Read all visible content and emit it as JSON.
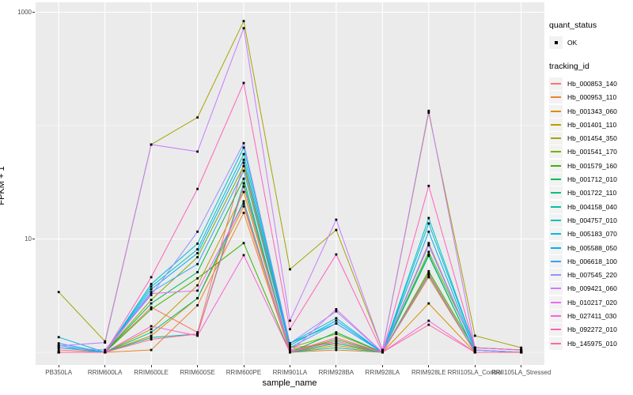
{
  "figure": {
    "y_axis_title": "FPKM + 1",
    "x_axis_title": "sample_name",
    "legend": {
      "quant_status_title": "quant_status",
      "quant_status_items": [
        "OK"
      ],
      "tracking_id_title": "tracking_id"
    }
  },
  "colors": {
    "panel_background": "#EBEBEB",
    "gridline": "#FFFFFF",
    "legend_key_background": "#F2F2F2",
    "point": "#000000",
    "tick_text": "#4D4D4D"
  },
  "chart_data": {
    "type": "line",
    "title": "",
    "xlabel": "sample_name",
    "ylabel": "FPKM + 1",
    "y_scale": "log10",
    "ylim": [
      1,
      1000
    ],
    "y_major_ticks": [
      10,
      1000
    ],
    "y_minor_gridlines": [
      1,
      100
    ],
    "grid": "on",
    "legend_position": "right",
    "point_marker": "small black square (quant_status = OK)",
    "categories": [
      "PB350LA",
      "RRIM600LA",
      "RRIM600LE",
      "RRIM600SE",
      "RRIM600PE",
      "RRIM901LA",
      "RRIM928BA",
      "RRIM928LA",
      "RRIM928LE",
      "RRII105LA_Control",
      "RRII105LA_Stressed"
    ],
    "series": [
      {
        "name": "Hb_000853_140",
        "color": "#F8766D",
        "values": [
          1.05,
          1.0,
          2.5,
          1.5,
          47,
          1.1,
          1.2,
          1.0,
          9.2,
          1.05,
          1.0
        ]
      },
      {
        "name": "Hb_000953_110",
        "color": "#EA8331",
        "values": [
          1.0,
          1.0,
          1.05,
          2.6,
          17,
          1.0,
          1.05,
          1.0,
          4.6,
          1.0,
          1.0
        ]
      },
      {
        "name": "Hb_001343_060",
        "color": "#D89000",
        "values": [
          1.0,
          1.0,
          1.4,
          3.0,
          19.4,
          1.0,
          1.15,
          1.0,
          2.7,
          1.0,
          1.0
        ]
      },
      {
        "name": "Hb_001401_110",
        "color": "#C09B00",
        "values": [
          1.0,
          1.0,
          1.6,
          3.9,
          26,
          1.05,
          1.25,
          1.0,
          5.0,
          1.0,
          1.0
        ]
      },
      {
        "name": "Hb_001454_350",
        "color": "#A3A500",
        "values": [
          3.4,
          1.25,
          68,
          118,
          836,
          5.4,
          12.0,
          1.05,
          130,
          1.4,
          1.1
        ]
      },
      {
        "name": "Hb_001541_170",
        "color": "#7CAE00",
        "values": [
          1.0,
          1.0,
          2.9,
          6.9,
          44,
          1.1,
          1.45,
          1.0,
          7.7,
          1.1,
          1.05
        ]
      },
      {
        "name": "Hb_001579_160",
        "color": "#39B600",
        "values": [
          1.0,
          1.0,
          2.4,
          4.5,
          9.2,
          1.0,
          1.3,
          1.0,
          5.2,
          1.05,
          1.0
        ]
      },
      {
        "name": "Hb_001712_010",
        "color": "#00BB4E",
        "values": [
          1.0,
          1.0,
          2.7,
          5.1,
          34,
          1.0,
          1.5,
          1.0,
          7.1,
          1.0,
          1.0
        ]
      },
      {
        "name": "Hb_001722_110",
        "color": "#00BF7D",
        "values": [
          1.0,
          1.0,
          1.5,
          3.0,
          21.5,
          1.0,
          1.2,
          1.0,
          4.8,
          1.0,
          1.0
        ]
      },
      {
        "name": "Hb_004158_040",
        "color": "#00C1A3",
        "values": [
          1.0,
          1.0,
          1.35,
          1.45,
          31,
          1.0,
          1.1,
          1.0,
          7.3,
          1.0,
          1.0
        ]
      },
      {
        "name": "Hb_004757_010",
        "color": "#00BFC4",
        "values": [
          1.1,
          1.0,
          3.8,
          8.1,
          56,
          1.2,
          1.8,
          1.0,
          13.7,
          1.1,
          1.05
        ]
      },
      {
        "name": "Hb_005183_070",
        "color": "#00BAE0",
        "values": [
          1.36,
          1.0,
          4.0,
          9.1,
          64,
          1.2,
          2.0,
          1.0,
          15.3,
          1.1,
          1.05
        ]
      },
      {
        "name": "Hb_005588_050",
        "color": "#00B0F6",
        "values": [
          1.2,
          1.0,
          3.6,
          7.5,
          50,
          1.15,
          1.9,
          1.0,
          11.6,
          1.05,
          1.0
        ]
      },
      {
        "name": "Hb_006618_100",
        "color": "#35A2FF",
        "values": [
          1.15,
          1.0,
          3.4,
          6.0,
          40,
          1.1,
          1.8,
          1.0,
          8.8,
          1.05,
          1.0
        ]
      },
      {
        "name": "Hb_007545_220",
        "color": "#9590FF",
        "values": [
          1.1,
          1.05,
          3.2,
          11.6,
          70,
          1.2,
          2.3,
          1.0,
          8.9,
          1.05,
          1.0
        ]
      },
      {
        "name": "Hb_009421_060",
        "color": "#C77CFF",
        "values": [
          1.14,
          1.22,
          68,
          59,
          723,
          1.9,
          14.8,
          1.05,
          135,
          1.1,
          1.05
        ]
      },
      {
        "name": "Hb_010217_020",
        "color": "#E76BF3",
        "values": [
          1.0,
          1.0,
          3.3,
          3.5,
          20.5,
          1.0,
          2.4,
          1.0,
          4.9,
          1.0,
          1.0
        ]
      },
      {
        "name": "Hb_027411_030",
        "color": "#FA62DB",
        "values": [
          1.0,
          1.0,
          1.7,
          1.4,
          7.2,
          1.0,
          1.25,
          1.0,
          1.9,
          1.0,
          1.0
        ]
      },
      {
        "name": "Hb_092272_010",
        "color": "#FF62BC",
        "values": [
          1.0,
          1.0,
          4.6,
          27.6,
          238,
          1.6,
          7.3,
          1.0,
          29.4,
          1.1,
          1.05
        ]
      },
      {
        "name": "Hb_145975_010",
        "color": "#FF6A98",
        "values": [
          1.0,
          1.0,
          1.3,
          1.45,
          29,
          1.0,
          1.35,
          1.0,
          1.75,
          1.0,
          1.0
        ]
      }
    ]
  }
}
